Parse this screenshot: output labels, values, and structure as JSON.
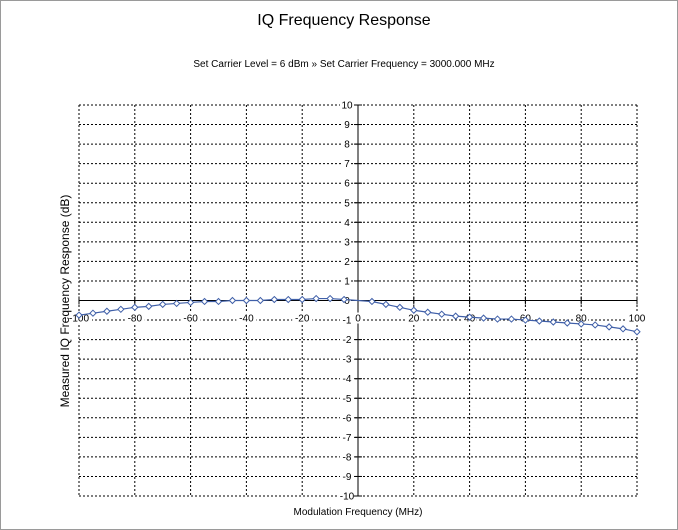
{
  "chart_data": {
    "type": "line",
    "title": "IQ Frequency Response",
    "subtitle": "Set Carrier Level = 6 dBm » Set Carrier Frequency = 3000.000 MHz",
    "xlabel": "Modulation Frequency (MHz)",
    "ylabel": "Measured IQ Frequency Response (dB)",
    "xlim": [
      -100,
      100
    ],
    "ylim": [
      -10,
      10
    ],
    "x_ticks": [
      "-100",
      "-80",
      "-60",
      "-40",
      "-20",
      "0",
      "20",
      "40",
      "60",
      "80",
      "100"
    ],
    "y_ticks": [
      "10",
      "9",
      "8",
      "7",
      "6",
      "5",
      "4",
      "3",
      "2",
      "1",
      "0",
      "-1",
      "-2",
      "-3",
      "-4",
      "-5",
      "-6",
      "-7",
      "-8",
      "-9",
      "-10"
    ],
    "grid": true,
    "series": [
      {
        "color": "#3f5fa8",
        "x": [
          -100,
          -95,
          -90,
          -85,
          -80,
          -75,
          -70,
          -65,
          -60,
          -55,
          -50,
          -45,
          -40,
          -35,
          -30,
          -25,
          -20,
          -15,
          -10,
          -5,
          5,
          10,
          15,
          20,
          25,
          30,
          35,
          40,
          45,
          50,
          55,
          60,
          65,
          70,
          75,
          80,
          85,
          90,
          95,
          100
        ],
        "y": [
          -0.75,
          -0.65,
          -0.55,
          -0.45,
          -0.35,
          -0.3,
          -0.2,
          -0.15,
          -0.1,
          -0.05,
          -0.05,
          0,
          0,
          0,
          0.05,
          0.05,
          0.05,
          0.1,
          0.1,
          0.05,
          -0.05,
          -0.2,
          -0.35,
          -0.5,
          -0.6,
          -0.7,
          -0.8,
          -0.85,
          -0.9,
          -0.95,
          -0.95,
          -1.0,
          -1.05,
          -1.1,
          -1.15,
          -1.2,
          -1.25,
          -1.35,
          -1.45,
          -1.6
        ]
      }
    ]
  }
}
